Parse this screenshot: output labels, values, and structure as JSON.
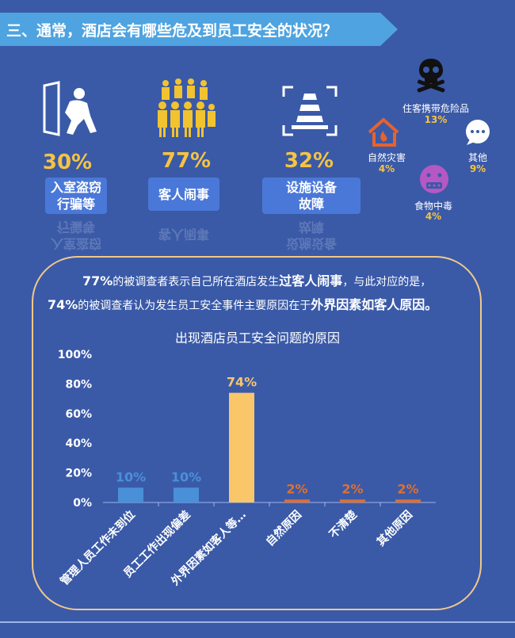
{
  "header": {
    "title": "三、通常，酒店会有哪些危及到员工安全的状况？"
  },
  "stats": [
    {
      "pct": "30%",
      "label": "入室盗窃\n行骗等"
    },
    {
      "pct": "77%",
      "label": "客人闹事"
    },
    {
      "pct": "32%",
      "label": "设施设备\n故障"
    }
  ],
  "others": [
    {
      "label": "住客携带危险品",
      "pct": "13%"
    },
    {
      "label": "自然灾害",
      "pct": "4%"
    },
    {
      "label": "其他",
      "pct": "9%"
    },
    {
      "label": "食物中毒",
      "pct": "4%"
    }
  ],
  "summary": {
    "line1_a": "77%",
    "line1_b": "的被调查者表示自己所在酒店发生",
    "line1_c": "过客人闹事",
    "line1_d": "，与此对应的是，",
    "line2_a": "74%",
    "line2_b": "的被调查者认为发生员工安全事件主要原因在于",
    "line2_c": "外界因素如客人原因。"
  },
  "chart_data": {
    "type": "bar",
    "title": "出现酒店员工安全问题的原因",
    "categories": [
      "管理人员工作未到位",
      "员工工作出现偏差",
      "外界因素如客人等…",
      "自然原因",
      "不清楚",
      "其他原因"
    ],
    "values": [
      10,
      10,
      74,
      2,
      2,
      2
    ],
    "value_labels": [
      "10%",
      "10%",
      "74%",
      "2%",
      "2%",
      "2%"
    ],
    "colors": [
      "#4a90d9",
      "#4a90d9",
      "#f9c66a",
      "#e0702e",
      "#e0702e",
      "#e0702e"
    ],
    "y_ticks": [
      "0%",
      "20%",
      "40%",
      "60%",
      "80%",
      "100%"
    ],
    "ylim": [
      0,
      100
    ],
    "grid": false
  }
}
